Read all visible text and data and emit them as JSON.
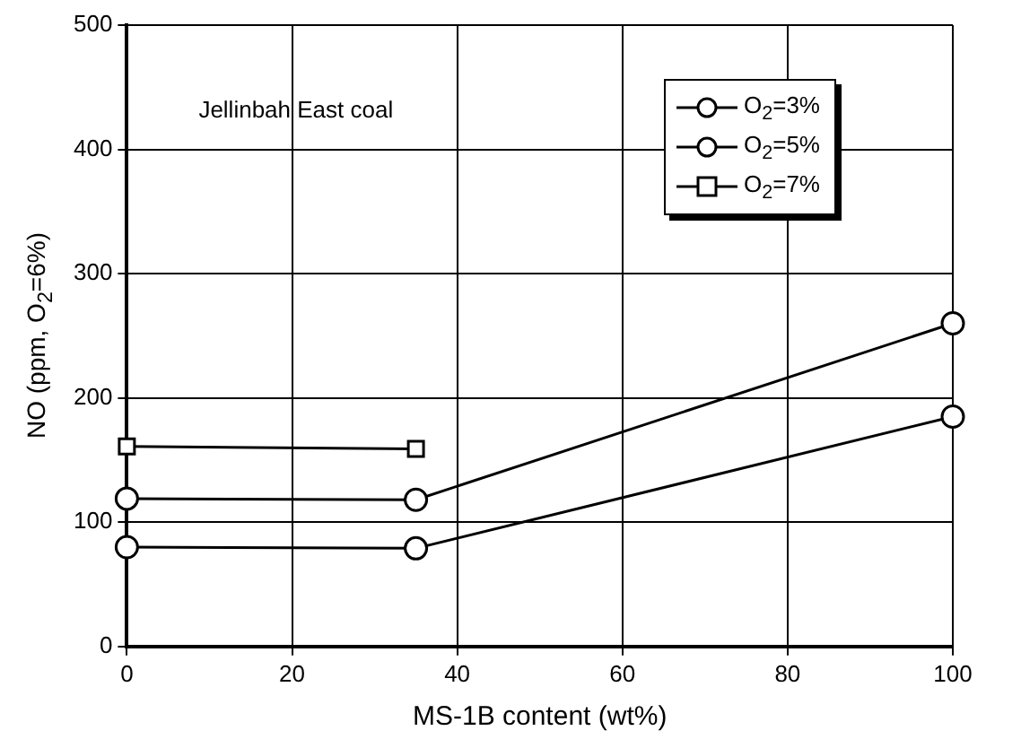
{
  "chart_data": {
    "type": "line",
    "xlabel": "MS-1B content (wt%)",
    "ylabel": "NO (ppm, O$_{2}$=6%)",
    "annotations": [
      "Jellinbah East coal"
    ],
    "xlim": [
      0,
      100
    ],
    "xticks": [
      0,
      20,
      40,
      60,
      80,
      100
    ],
    "ylim": [
      0,
      500
    ],
    "yticks": [
      0,
      100,
      200,
      300,
      400,
      500
    ],
    "grid": true,
    "legend": "top right",
    "line_style": "solid",
    "series": [
      {
        "name": "O$_{2}$=3%",
        "color": "#000000",
        "marker": "circle",
        "x": [
          0,
          35,
          100
        ],
        "values": [
          80,
          79,
          185
        ]
      },
      {
        "name": "O$_{2}$=5%",
        "color": "#000000",
        "marker": "circle",
        "x": [
          0,
          35,
          100
        ],
        "values": [
          119,
          118,
          260
        ]
      },
      {
        "name": "O$_{2}$=7%",
        "color": "#000000",
        "marker": "square",
        "x": [
          0,
          35
        ],
        "values": [
          161,
          159
        ]
      }
    ]
  }
}
